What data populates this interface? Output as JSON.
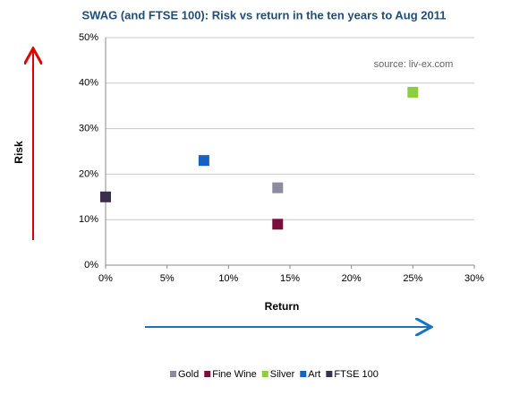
{
  "chart_data": {
    "type": "scatter",
    "title": "SWAG (and FTSE 100): Risk vs return in the ten years to Aug 2011",
    "annotation": "source: liv-ex.com",
    "x_label": "Return",
    "y_label": "Risk",
    "series": [
      {
        "name": "Gold",
        "color": "#8c8c9e",
        "x": [
          14
        ],
        "values": [
          17
        ]
      },
      {
        "name": "Fine Wine",
        "color": "#7b0f3c",
        "x": [
          14
        ],
        "values": [
          9
        ]
      },
      {
        "name": "Silver",
        "color": "#8ccf3c",
        "x": [
          25
        ],
        "values": [
          38
        ]
      },
      {
        "name": "Art",
        "color": "#1462c4",
        "x": [
          8
        ],
        "values": [
          23
        ]
      },
      {
        "name": "FTSE 100",
        "color": "#3b2f50",
        "x": [
          0
        ],
        "values": [
          15
        ]
      }
    ],
    "xlim": [
      0,
      30
    ],
    "xticks": [
      {
        "value": 0,
        "label": "0%"
      },
      {
        "value": 5,
        "label": "5%"
      },
      {
        "value": 10,
        "label": "10%"
      },
      {
        "value": 15,
        "label": "15%"
      },
      {
        "value": 20,
        "label": "20%"
      },
      {
        "value": 25,
        "label": "25%"
      },
      {
        "value": 30,
        "label": "30%"
      }
    ],
    "ylim": [
      0,
      50
    ],
    "yticks": [
      {
        "value": 0,
        "label": "0%"
      },
      {
        "value": 10,
        "label": "10%"
      },
      {
        "value": 20,
        "label": "20%"
      },
      {
        "value": 30,
        "label": "30%"
      },
      {
        "value": 40,
        "label": "40%"
      },
      {
        "value": 50,
        "label": "50%"
      }
    ],
    "grid": true
  }
}
